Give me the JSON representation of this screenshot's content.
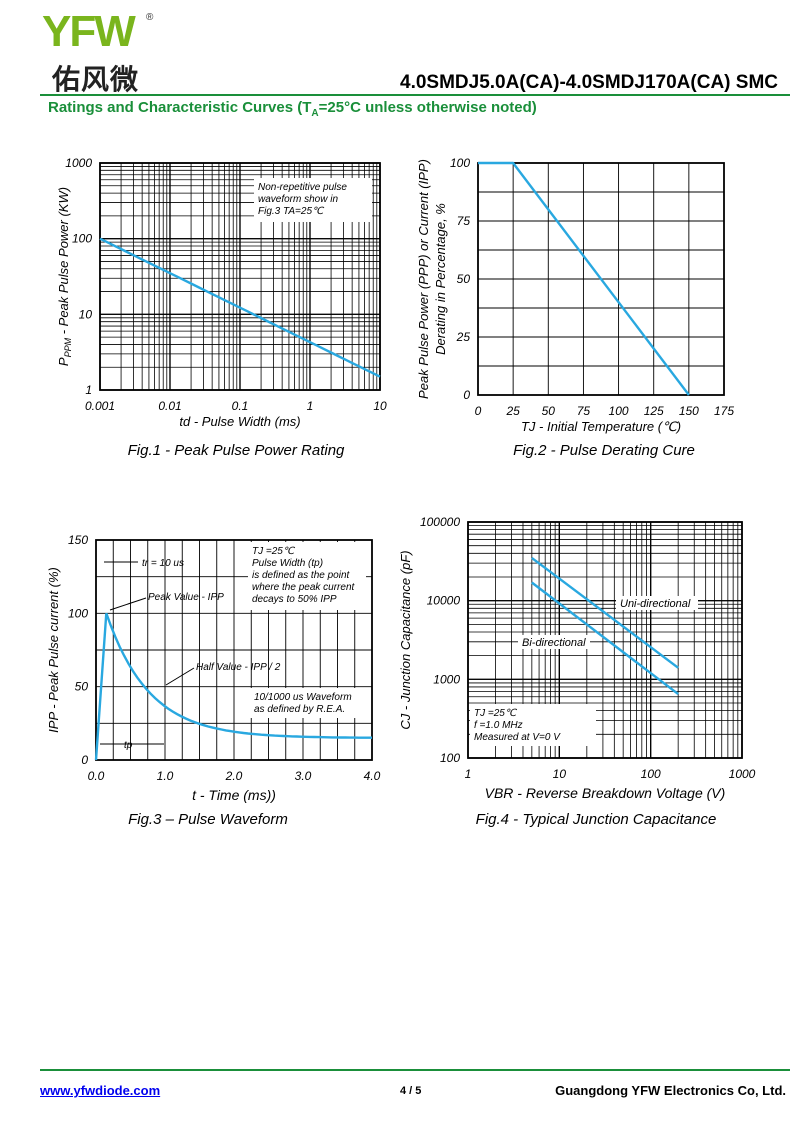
{
  "header": {
    "logo_text": "YFW",
    "logo_reg": "®",
    "logo_cn": "佑风微",
    "title": "4.0SMDJ5.0A(CA)-4.0SMDJ170A(CA)  SMC",
    "subtitle_pre": "Ratings and Characteristic Curves (T",
    "subtitle_sub": "A",
    "subtitle_post": "=25°C unless otherwise noted)"
  },
  "colors": {
    "curve": "#29a8e0",
    "rule": "#1a8f3a",
    "logo_green": "#7ab51d",
    "logo_orange": "#f39800"
  },
  "chart_data": [
    {
      "type": "line",
      "xscale": "log",
      "yscale": "log",
      "xlim": [
        0.001,
        10
      ],
      "ylim": [
        1,
        1000
      ],
      "x_ticks": [
        "0.001",
        "0.01",
        "0.1",
        "1",
        "10"
      ],
      "y_ticks": [
        "1",
        "10",
        "100",
        "1000"
      ],
      "xlabel": "td - Pulse Width (ms)",
      "ylabel": "P",
      "ylabel_sub": "PPM",
      "ylabel_post": " - Peak Pulse Power  (KW)",
      "annotation": [
        "Non-repetitive pulse",
        "waveform show in",
        "Fig.3  TA=25℃"
      ],
      "series": [
        {
          "x": [
            0.001,
            10
          ],
          "y": [
            100,
            1.5
          ]
        }
      ],
      "caption": "Fig.1 - Peak Pulse Power Rating"
    },
    {
      "type": "line",
      "xlim": [
        0,
        175
      ],
      "ylim": [
        0,
        100
      ],
      "x_ticks": [
        "0",
        "25",
        "50",
        "75",
        "100",
        "125",
        "150",
        "175"
      ],
      "y_ticks": [
        "0",
        "25",
        "50",
        "75",
        "100"
      ],
      "xlabel": "TJ - Initial Temperature (℃)",
      "ylabel_line1": "Peak Pulse Power (PPP) or Current (IPP)",
      "ylabel_line2": "Derating in Percentage, %",
      "series": [
        {
          "x": [
            0,
            25,
            150
          ],
          "y": [
            100,
            100,
            0
          ]
        }
      ],
      "caption": "Fig.2 - Pulse Derating Cure"
    },
    {
      "type": "line",
      "xlim": [
        0,
        4.0
      ],
      "ylim": [
        0,
        150
      ],
      "x_ticks": [
        "0.0",
        "1.0",
        "2.0",
        "3.0",
        "4.0"
      ],
      "y_ticks": [
        "0",
        "50",
        "100",
        "150"
      ],
      "xlabel": "t - Time (ms))",
      "ylabel": "IPP - Peak Pulse current (%)",
      "labels": {
        "tr": "tr = 10 us",
        "tp": "tp",
        "peak": "Peak Value - IPP",
        "half": "Half Value - IPP / 2",
        "note": [
          "TJ =25℃",
          "Pulse Width (tp)",
          "is defined as the point",
          "where the peak current",
          "decays to 50% IPP"
        ],
        "wave": [
          "10/1000 us Waveform",
          "as defined by R.E.A."
        ]
      },
      "series": [
        {
          "x": [
            0,
            0.15,
            0.5,
            1.0,
            1.5,
            2.0,
            2.5,
            3.0,
            3.5,
            4.0
          ],
          "y": [
            0,
            100,
            68,
            50,
            38,
            29,
            23,
            20,
            18,
            17
          ]
        }
      ],
      "caption": "Fig.3 – Pulse Waveform"
    },
    {
      "type": "line",
      "xscale": "log",
      "yscale": "log",
      "xlim": [
        1,
        1000
      ],
      "ylim": [
        100,
        100000
      ],
      "x_ticks": [
        "1",
        "10",
        "100",
        "1000"
      ],
      "y_ticks": [
        "100",
        "1000",
        "10000",
        "100000"
      ],
      "xlabel": "VBR - Reverse Breakdown Voltage (V)",
      "ylabel": "CJ - Junction Capacitance (pF)",
      "note": [
        "TJ =25℃",
        "f =1.0 MHz",
        "Measured at V=0 V"
      ],
      "series": [
        {
          "name": "Uni-directional",
          "x": [
            5,
            200
          ],
          "y": [
            35000,
            1400
          ]
        },
        {
          "name": "Bi-directional",
          "x": [
            5,
            200
          ],
          "y": [
            17000,
            650
          ]
        }
      ],
      "caption": "Fig.4 - Typical Junction Capacitance"
    }
  ],
  "footer": {
    "website": "www.yfwdiode.com",
    "page": "4 / 5",
    "company": "Guangdong YFW Electronics Co, Ltd."
  }
}
